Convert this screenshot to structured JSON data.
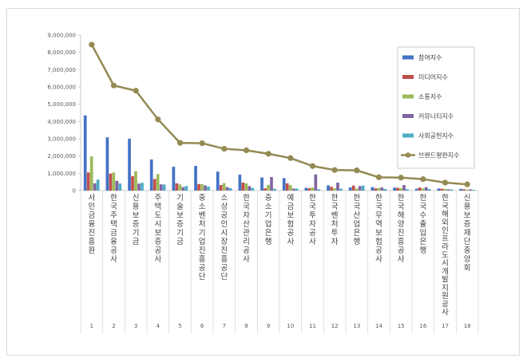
{
  "chart_data": {
    "type": "bar",
    "ylim": [
      0,
      9000000
    ],
    "y_ticks": [
      "0",
      "1,000,000",
      "2,000,000",
      "3,000,000",
      "4,000,000",
      "5,000,000",
      "6,000,000",
      "7,000,000",
      "8,000,000",
      "9,000,000"
    ],
    "legend_position": "top-right",
    "categories": [
      "서민금융진흥원",
      "한국주택금융공사",
      "신용보증기금",
      "주택도시보증공사",
      "기술보증기금",
      "중소벤처기업진흥공단",
      "소상공인시장진흥공단",
      "한국자산관리공사",
      "중소기업은행",
      "예금보험공사",
      "한국투자공사",
      "한국벤처투자",
      "한국산업은행",
      "한국무역보험공사",
      "한국해양진흥공사",
      "한국수출입은행",
      "한국해외인프라도시개발지원공사",
      "신용보증재단중앙회"
    ],
    "category_numbers": [
      "1",
      "2",
      "3",
      "4",
      "5",
      "6",
      "7",
      "8",
      "9",
      "10",
      "11",
      "12",
      "13",
      "14",
      "15",
      "16",
      "17",
      "18"
    ],
    "series": [
      {
        "name": "참여지수",
        "type": "bar",
        "color": "#4472C4",
        "values": [
          4350000,
          3080000,
          3000000,
          1800000,
          1380000,
          1430000,
          1100000,
          920000,
          760000,
          720000,
          160000,
          300000,
          180000,
          200000,
          170000,
          110000,
          120000,
          100000
        ]
      },
      {
        "name": "미디어지수",
        "type": "bar",
        "color": "#C0504D",
        "values": [
          1050000,
          980000,
          830000,
          670000,
          420000,
          380000,
          320000,
          460000,
          130000,
          420000,
          140000,
          220000,
          290000,
          130000,
          160000,
          180000,
          110000,
          80000
        ]
      },
      {
        "name": "소통지수",
        "type": "bar",
        "color": "#9BBB59",
        "values": [
          1980000,
          1050000,
          1120000,
          960000,
          360000,
          370000,
          430000,
          420000,
          330000,
          320000,
          180000,
          130000,
          120000,
          150000,
          140000,
          130000,
          100000,
          60000
        ]
      },
      {
        "name": "커뮤니티지수",
        "type": "bar",
        "color": "#8064A2",
        "values": [
          420000,
          560000,
          400000,
          360000,
          200000,
          300000,
          200000,
          260000,
          780000,
          110000,
          930000,
          460000,
          260000,
          180000,
          320000,
          200000,
          70000,
          70000
        ]
      },
      {
        "name": "사회공헌지수",
        "type": "bar",
        "color": "#4BACC6",
        "values": [
          630000,
          410000,
          450000,
          350000,
          260000,
          230000,
          140000,
          150000,
          100000,
          120000,
          80000,
          110000,
          290000,
          90000,
          80000,
          90000,
          70000,
          40000
        ]
      },
      {
        "name": "브랜드평판지수",
        "type": "line",
        "color": "#948A54",
        "values": [
          8450000,
          6080000,
          5780000,
          4120000,
          2760000,
          2740000,
          2420000,
          2330000,
          2130000,
          1880000,
          1420000,
          1190000,
          1170000,
          770000,
          750000,
          660000,
          460000,
          360000
        ]
      }
    ]
  }
}
